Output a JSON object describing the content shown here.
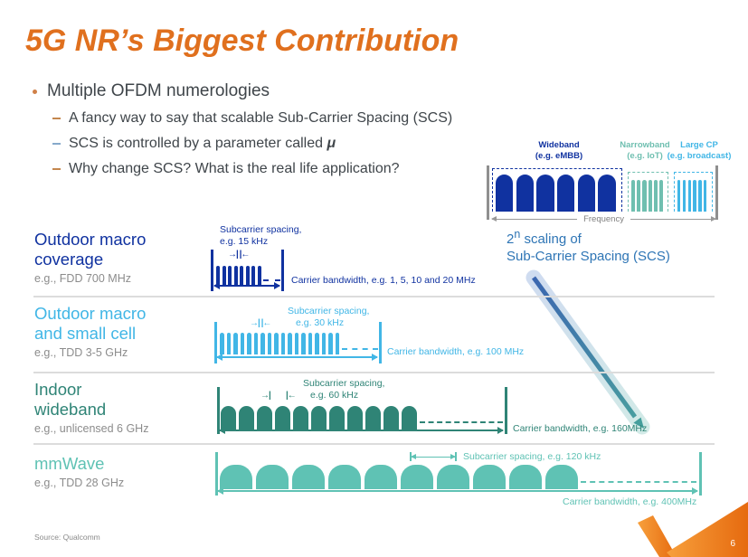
{
  "title": "5G NR’s Biggest Contribution",
  "bullets": {
    "main": "Multiple OFDM numerologies",
    "sub1": "A fancy way to say that scalable Sub-Carrier Spacing (SCS)",
    "sub2_prefix": "SCS is controlled by a parameter called ",
    "sub2_emphasis": "μ",
    "sub3": "Why change SCS? What is the real life application?"
  },
  "freq_diagram": {
    "groups": [
      {
        "name": "Wideband",
        "example": "(e.g. eMBB)",
        "color": "#1032A0"
      },
      {
        "name": "Narrowband",
        "example": "(e.g. IoT)",
        "color": "#6FBFB0"
      },
      {
        "name": "Large CP",
        "example": "(e.g. broadcast)",
        "color": "#41B6E6"
      }
    ],
    "axis_label": "Frequency"
  },
  "scaling_note": {
    "line1_base": "2",
    "line1_sup": "n",
    "line1_rest": " scaling of",
    "line2": "Sub-Carrier Spacing (SCS)"
  },
  "rows": [
    {
      "title1": "Outdoor macro",
      "title2": "coverage",
      "subtitle": "e.g., FDD 700 MHz",
      "scs1": "Subcarrier spacing,",
      "scs2": "e.g. 15 kHz",
      "bw": "Carrier bandwidth, e.g. 1, 5, 10 and 20 MHz",
      "color": "#1032A0"
    },
    {
      "title1": "Outdoor macro",
      "title2": "and small cell",
      "subtitle": "e.g., TDD 3-5 GHz",
      "scs1": "Subcarrier spacing,",
      "scs2": "e.g. 30 kHz",
      "bw": "Carrier bandwidth, e.g. 100 MHz",
      "color": "#41B6E6"
    },
    {
      "title1": "Indoor",
      "title2": "wideband",
      "subtitle": "e.g., unlicensed 6 GHz",
      "scs1": "Subcarrier spacing,",
      "scs2": "e.g. 60 kHz",
      "bw": "Carrier bandwidth, e.g. 160MHz",
      "color": "#2F8476"
    },
    {
      "title1": "mmWave",
      "title2": "",
      "subtitle": "e.g., TDD 28 GHz",
      "scs1": "Subcarrier spacing, e.g. 120 kHz",
      "scs2": "",
      "bw": "Carrier bandwidth, e.g. 400MHz",
      "color": "#5FC2B4"
    }
  ],
  "icons": {
    "arrow_right_tick": "→|",
    "tick_arrow_left": "|←",
    "scs_arrows_pair": "→| |←"
  },
  "footer": {
    "source": "Source: Qualcomm",
    "page": "6"
  },
  "colors": {
    "title_orange": "#E0701E",
    "dark_blue": "#1032A0",
    "light_blue": "#41B6E6",
    "teal": "#2F8476",
    "light_teal": "#5FC2B4",
    "narrowband_teal": "#6FBFB0",
    "scaling_blue": "#2E75B5",
    "body_text": "#3F454A",
    "gray_text": "#8C8C8C",
    "separator": "#DCDCDC",
    "swoosh_orange": "#EE7623",
    "bullet_dot": "#D08048",
    "bullet_dash_colors": [
      "#C4874E",
      "#86A9CB",
      "#C4874E"
    ]
  }
}
